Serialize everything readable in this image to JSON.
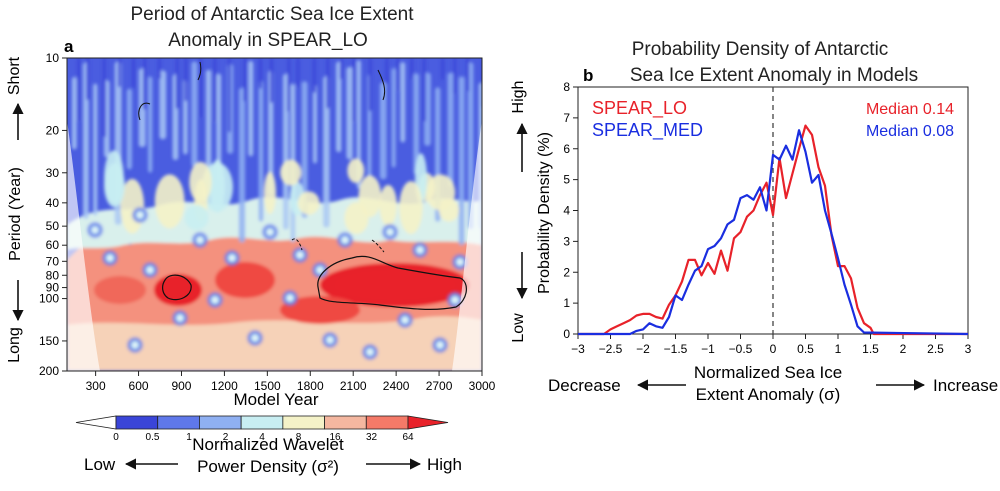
{
  "panel_a": {
    "letter": "a",
    "title_line1": "Period of Antarctic Sea Ice Extent",
    "title_line2": "Anomaly in SPEAR_LO",
    "xlabel": "Model Year",
    "ylabel": "Period (Year)",
    "short_label": "Short",
    "long_label": "Long",
    "colorbar_title_line1": "Normalized Wavelet",
    "colorbar_title_line2": "Power Density (σ²)",
    "low_label": "Low",
    "high_label": "High"
  },
  "panel_b": {
    "letter": "b",
    "title_line1": "Probability Density of Antarctic",
    "title_line2": "Sea Ice Extent Anomaly in Models",
    "ylabel": "Probability Density (%)",
    "xlabel_line1": "Normalized Sea Ice",
    "xlabel_line2": "Extent Anomaly (σ)",
    "decrease_label": "Decrease",
    "increase_label": "Increase",
    "high_label": "High",
    "low_label": "Low",
    "legend": [
      {
        "name": "SPEAR_LO",
        "median_label": "Median 0.14",
        "color": "#e8222a"
      },
      {
        "name": "SPEAR_MED",
        "median_label": "Median 0.08",
        "color": "#1a2ee0"
      }
    ]
  },
  "chart_data": [
    {
      "type": "heatmap",
      "title": "Period of Antarctic Sea Ice Extent Anomaly in SPEAR_LO",
      "xlabel": "Model Year",
      "ylabel": "Period (Year)",
      "xlim": [
        100,
        3000
      ],
      "ylim": [
        10,
        200
      ],
      "y_scale": "log",
      "x_ticks": [
        300,
        600,
        900,
        1200,
        1500,
        1800,
        2100,
        2400,
        2700,
        3000
      ],
      "x_tick_labels": [
        "300",
        "600",
        "900",
        "1200",
        "1500",
        "1800",
        "2100",
        "2400",
        "2700",
        "3000"
      ],
      "y_ticks": [
        10,
        20,
        30,
        40,
        50,
        60,
        70,
        80,
        90,
        100,
        150,
        200
      ],
      "y_tick_labels": [
        "10",
        "20",
        "30",
        "40",
        "50",
        "60",
        "70",
        "80",
        "90",
        "100",
        "150",
        "200"
      ],
      "colorbar_levels": [
        "0",
        "0.5",
        "1",
        "2",
        "4",
        "8",
        "16",
        "32",
        "64"
      ],
      "colorbar_colors": [
        "#ffffff",
        "#3a45d8",
        "#5f78ea",
        "#8fb0f2",
        "#c8eef2",
        "#f4f2c8",
        "#f4b7a0",
        "#f47a68",
        "#e8222a"
      ]
    },
    {
      "type": "line",
      "title": "Probability Density of Antarctic Sea Ice Extent Anomaly in Models",
      "xlabel": "Normalized Sea Ice Extent Anomaly (σ)",
      "ylabel": "Probability Density (%)",
      "xlim": [
        -3,
        3
      ],
      "ylim": [
        0,
        8
      ],
      "x_ticks": [
        -3,
        -2.5,
        -2,
        -1.5,
        -1,
        -0.5,
        0,
        0.5,
        1,
        1.5,
        2,
        2.5,
        3
      ],
      "x_tick_labels": [
        "−3",
        "−2.5",
        "−2",
        "−1.5",
        "−1",
        "−0.5",
        "0",
        "0.5",
        "1",
        "1.5",
        "2",
        "2.5",
        "3"
      ],
      "y_ticks": [
        0,
        1,
        2,
        3,
        4,
        5,
        6,
        7,
        8
      ],
      "y_tick_labels": [
        "0",
        "1",
        "2",
        "3",
        "4",
        "5",
        "6",
        "7",
        "8"
      ],
      "reference_line_x": 0,
      "series": [
        {
          "name": "SPEAR_LO",
          "median": 0.14,
          "color": "#e8222a",
          "x": [
            -3,
            -2.6,
            -2.5,
            -2.4,
            -2.3,
            -2.2,
            -2.1,
            -2.0,
            -1.9,
            -1.8,
            -1.7,
            -1.6,
            -1.5,
            -1.4,
            -1.3,
            -1.2,
            -1.1,
            -1.0,
            -0.9,
            -0.8,
            -0.7,
            -0.6,
            -0.5,
            -0.4,
            -0.3,
            -0.2,
            -0.1,
            0.0,
            0.1,
            0.2,
            0.3,
            0.4,
            0.5,
            0.6,
            0.7,
            0.8,
            0.9,
            1.0,
            1.1,
            1.2,
            1.3,
            1.4,
            1.5,
            1.55,
            3
          ],
          "y": [
            0,
            0,
            0.15,
            0.25,
            0.35,
            0.45,
            0.6,
            0.65,
            0.65,
            0.55,
            0.5,
            0.95,
            1.25,
            1.7,
            2.4,
            2.4,
            1.9,
            2.3,
            1.95,
            2.7,
            2.05,
            3.1,
            3.3,
            3.8,
            4.0,
            4.5,
            4.9,
            3.85,
            5.7,
            4.4,
            5.2,
            6.0,
            6.75,
            6.45,
            5.4,
            4.8,
            3.2,
            2.2,
            2.2,
            1.8,
            0.85,
            0.35,
            0.2,
            0,
            0
          ]
        },
        {
          "name": "SPEAR_MED",
          "median": 0.08,
          "color": "#1a2ee0",
          "x": [
            -3,
            -2.2,
            -2.1,
            -2.0,
            -1.9,
            -1.8,
            -1.7,
            -1.6,
            -1.5,
            -1.4,
            -1.3,
            -1.2,
            -1.1,
            -1.0,
            -0.9,
            -0.8,
            -0.7,
            -0.6,
            -0.5,
            -0.4,
            -0.3,
            -0.2,
            -0.1,
            0.0,
            0.1,
            0.2,
            0.3,
            0.4,
            0.5,
            0.6,
            0.7,
            0.8,
            0.9,
            1.0,
            1.1,
            1.2,
            1.3,
            1.4,
            3
          ],
          "y": [
            0,
            0,
            0.1,
            0.15,
            0.35,
            0.25,
            0.2,
            0.55,
            1.25,
            1.1,
            1.6,
            2.05,
            2.2,
            2.75,
            2.85,
            3.1,
            3.55,
            3.7,
            4.4,
            4.5,
            4.35,
            4.75,
            4.0,
            5.8,
            5.65,
            6.1,
            5.65,
            6.6,
            5.9,
            4.9,
            5.15,
            4.0,
            3.25,
            2.45,
            1.6,
            0.95,
            0.25,
            0.05,
            0
          ]
        }
      ]
    }
  ]
}
